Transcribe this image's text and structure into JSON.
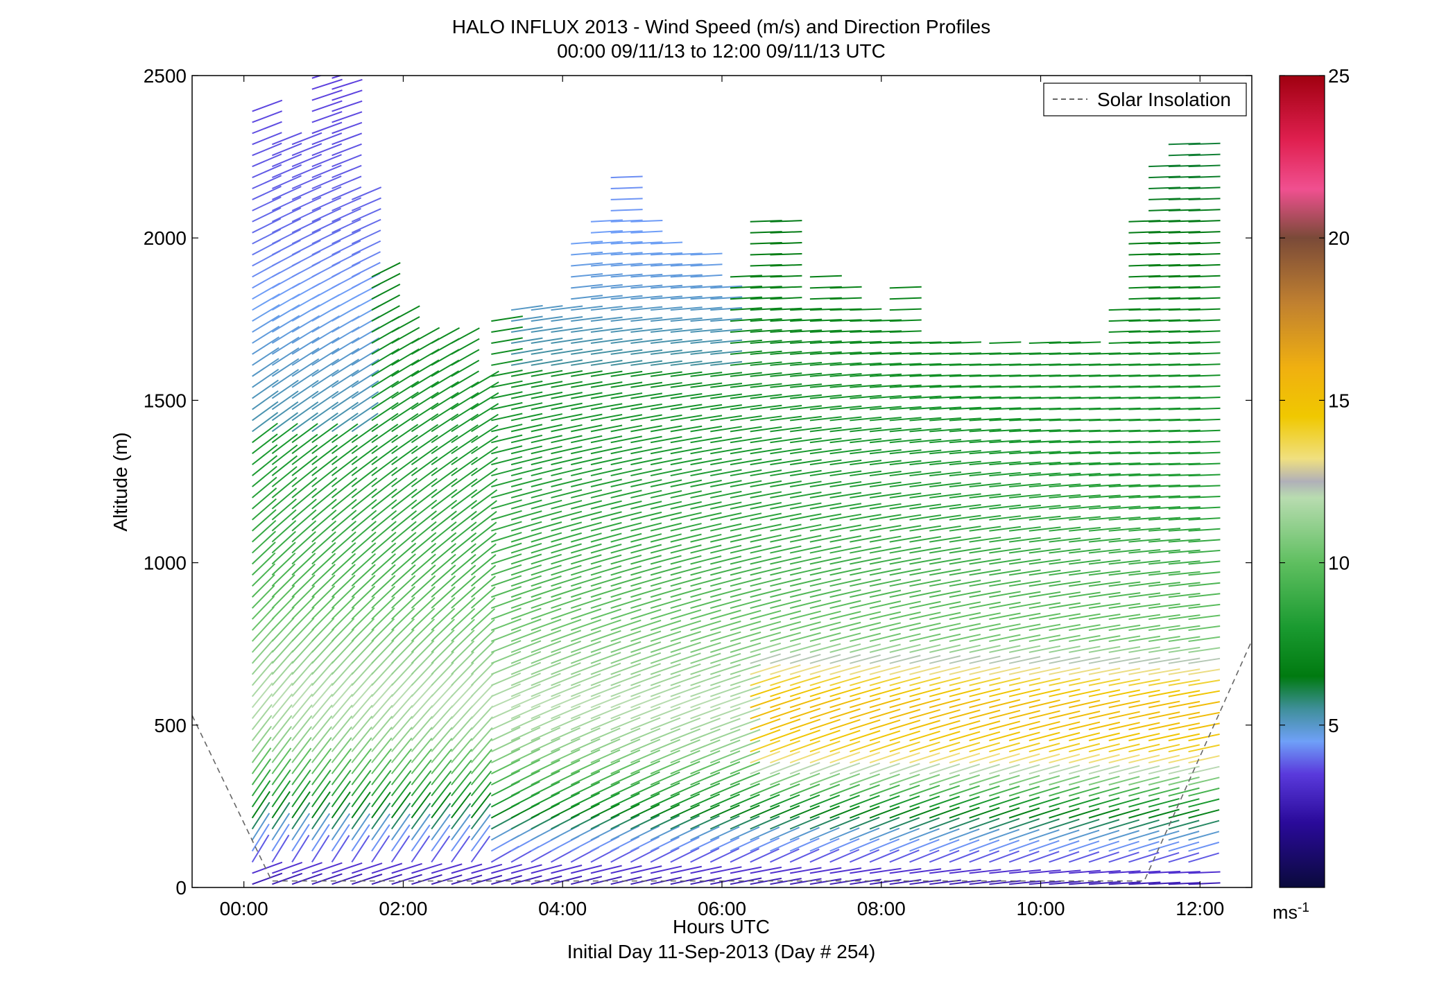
{
  "chart_data": {
    "type": "barbs",
    "title": "HALO INFLUX 2013 - Wind Speed (m/s) and Direction Profiles",
    "subtitle": "00:00 09/11/13 to 12:00 09/11/13  UTC",
    "xlabel": "Hours UTC",
    "ylabel": "Altitude (m)",
    "footer": "Initial Day 11-Sep-2013 (Day # 254)",
    "xlim": [
      -0.65,
      12.65
    ],
    "ylim": [
      0,
      2500
    ],
    "x_ticks": [
      {
        "value": 0,
        "label": "00:00"
      },
      {
        "value": 2,
        "label": "02:00"
      },
      {
        "value": 4,
        "label": "04:00"
      },
      {
        "value": 6,
        "label": "06:00"
      },
      {
        "value": 8,
        "label": "08:00"
      },
      {
        "value": 10,
        "label": "10:00"
      },
      {
        "value": 12,
        "label": "12:00"
      }
    ],
    "y_ticks": [
      0,
      500,
      1000,
      1500,
      2000,
      2500
    ],
    "grid": false,
    "legend": {
      "position": "top-right",
      "entries": [
        {
          "label": "Solar Insolation",
          "style": "dashed",
          "color": "#666666"
        }
      ]
    },
    "solar_insolation": {
      "x": [
        -0.65,
        0.35,
        11.3,
        12.65
      ],
      "y": [
        530,
        20,
        20,
        760
      ]
    },
    "colorbar": {
      "min": 0,
      "max": 25,
      "ticks": [
        5,
        10,
        15,
        20,
        25
      ],
      "unit_label": "ms",
      "unit_exponent": "-1",
      "stops": [
        {
          "v": 0,
          "c": "#0a0a3c"
        },
        {
          "v": 2,
          "c": "#2a0a9a"
        },
        {
          "v": 3.5,
          "c": "#5a3adc"
        },
        {
          "v": 4.5,
          "c": "#6fa0f8"
        },
        {
          "v": 5.5,
          "c": "#3f8f9a"
        },
        {
          "v": 6.5,
          "c": "#007a10"
        },
        {
          "v": 8,
          "c": "#1a9a30"
        },
        {
          "v": 10,
          "c": "#5fbf60"
        },
        {
          "v": 12,
          "c": "#b8dcb0"
        },
        {
          "v": 12.5,
          "c": "#b0b0b8"
        },
        {
          "v": 13.2,
          "c": "#f0e080"
        },
        {
          "v": 14.5,
          "c": "#f0c800"
        },
        {
          "v": 16,
          "c": "#f0b010"
        },
        {
          "v": 18,
          "c": "#c08030"
        },
        {
          "v": 20,
          "c": "#7a4a38"
        },
        {
          "v": 21.5,
          "c": "#f05090"
        },
        {
          "v": 23,
          "c": "#e02050"
        },
        {
          "v": 25,
          "c": "#a00010"
        }
      ]
    },
    "profiles": {
      "times": [
        0.0,
        0.25,
        0.5,
        0.75,
        1.0,
        1.25,
        1.5,
        1.75,
        2.0,
        2.25,
        2.5,
        2.75,
        3.0,
        3.25,
        3.5,
        3.75,
        4.0,
        4.25,
        4.5,
        4.75,
        5.0,
        5.25,
        5.5,
        5.75,
        6.0,
        6.25,
        6.5,
        6.75,
        7.0,
        7.25,
        7.5,
        7.75,
        8.0,
        8.25,
        8.5,
        8.75,
        9.0,
        9.25,
        9.5,
        9.75,
        10.0,
        10.25,
        10.5,
        10.75,
        11.0,
        11.25,
        11.5,
        11.75
      ],
      "top_m": [
        2400,
        2300,
        2300,
        2500,
        2500,
        2150,
        1900,
        1750,
        1700,
        1700,
        1700,
        1550,
        1750,
        1780,
        1800,
        1800,
        2000,
        2050,
        2200,
        2050,
        2000,
        1950,
        1950,
        1850,
        1900,
        2050,
        2050,
        1800,
        1900,
        1850,
        1800,
        1750,
        1850,
        1700,
        1700,
        1700,
        1650,
        1700,
        1650,
        1700,
        1700,
        1700,
        1650,
        1800,
        2050,
        2250,
        2300,
        2300
      ],
      "spacing_m": 34,
      "speed_ms": [
        {
          "alt": 0,
          "v": 2.5
        },
        {
          "alt": 60,
          "v": 3.5
        },
        {
          "alt": 150,
          "v": 5.0
        },
        {
          "alt": 250,
          "v": 8.0
        },
        {
          "alt": 400,
          "v": 11.0
        },
        {
          "alt": 550,
          "v": 12.0
        },
        {
          "alt": 750,
          "v": 10.5
        },
        {
          "alt": 1000,
          "v": 9.0
        },
        {
          "alt": 1300,
          "v": 8.0
        },
        {
          "alt": 1600,
          "v": 7.5
        },
        {
          "alt": 2000,
          "v": 6.5
        },
        {
          "alt": 2500,
          "v": 6.0
        }
      ]
    }
  }
}
